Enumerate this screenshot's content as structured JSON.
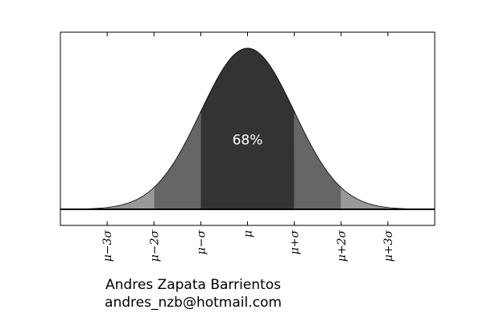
{
  "chart_data": {
    "type": "area",
    "title": "",
    "xlabel": "",
    "ylabel": "",
    "distribution": "normal",
    "mean": 0,
    "sd": 1,
    "xlim": [
      -4,
      4
    ],
    "ylim": [
      -0.04,
      0.4386
    ],
    "grid": false,
    "legend": "none",
    "x_ticks": [
      -3,
      -2,
      -1,
      0,
      1,
      2,
      3
    ],
    "x_tick_labels": [
      "μ−3σ",
      "μ−2σ",
      "μ−σ",
      "μ",
      "μ+σ",
      "μ+2σ",
      "μ+3σ"
    ],
    "bands": [
      {
        "from": -4,
        "to": -3,
        "color": "#cccccc"
      },
      {
        "from": -3,
        "to": -2,
        "color": "#999999"
      },
      {
        "from": -2,
        "to": -1,
        "color": "#666666"
      },
      {
        "from": -1,
        "to": 1,
        "color": "#333333"
      },
      {
        "from": 1,
        "to": 2,
        "color": "#666666"
      },
      {
        "from": 2,
        "to": 3,
        "color": "#999999"
      },
      {
        "from": 3,
        "to": 4,
        "color": "#cccccc"
      }
    ],
    "annotations": [
      {
        "text": "68%",
        "x": 0,
        "y": 0.16
      }
    ]
  },
  "credits": {
    "name": "Andres Zapata Barrientos",
    "email": "andres_nzb@hotmail.com"
  }
}
